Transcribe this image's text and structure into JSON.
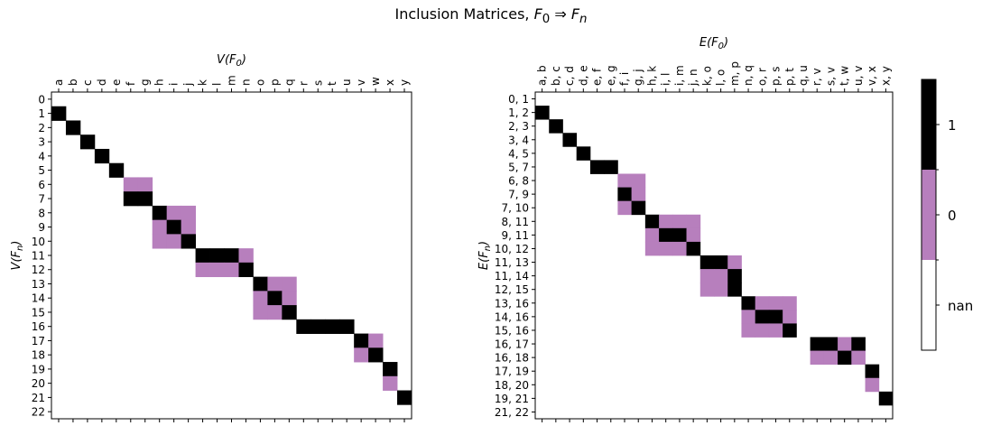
{
  "title": "Inclusion Matrices, F₀ ⇒ Fₙ",
  "colors": {
    "one": "#000000",
    "zero": "#b77fbd",
    "nan": "#ffffff"
  },
  "colorbar": {
    "ticks": [
      "1",
      "0",
      "nan"
    ]
  },
  "chart_data": [
    {
      "type": "heatmap",
      "title": "",
      "xlabel": "V(F₀)",
      "ylabel": "V(Fₙ)",
      "xlabel_top": true,
      "x_categories": [
        "a",
        "b",
        "c",
        "d",
        "e",
        "f",
        "g",
        "h",
        "i",
        "j",
        "k",
        "l",
        "m",
        "n",
        "o",
        "p",
        "q",
        "r",
        "s",
        "t",
        "u",
        "v",
        "w",
        "x",
        "y"
      ],
      "y_categories": [
        "0",
        "1",
        "2",
        "3",
        "4",
        "5",
        "6",
        "7",
        "8",
        "9",
        "10",
        "11",
        "12",
        "13",
        "14",
        "15",
        "16",
        "17",
        "18",
        "19",
        "20",
        "21",
        "22"
      ],
      "rows": [
        "nnnnnnnnnnnnnnnnnnnnnnnnn",
        "1nnnnnnnnnnnnnnnnnnnnnnnn",
        "n1nnnnnnnnnnnnnnnnnnnnnnn",
        "nn1nnnnnnnnnnnnnnnnnnnnnn",
        "nnn1nnnnnnnnnnnnnnnnnnnnn",
        "nnnn1nnnnnnnnnnnnnnnnnnnn",
        "nnnnn00nnnnnnnnnnnnnnnnnn",
        "nnnnn11nnnnnnnnnnnnnnnnnn",
        "nnnnnnn100nnnnnnnnnnnnnnn",
        "nnnnnnn010nnnnnnnnnnnnnnn",
        "nnnnnnn001nnnnnnnnnnnnnnn",
        "nnnnnnnnnn1110nnnnnnnnnnn",
        "nnnnnnnnnn0001nnnnnnnnnnn",
        "nnnnnnnnnnnnnn100nnnnnnnn",
        "nnnnnnnnnnnnnn010nnnnnnnn",
        "nnnnnnnnnnnnnn001nnnnnnnn",
        "nnnnnnnnnnnnnnnnn1111nnnn",
        "nnnnnnnnnnnnnnnnnnnnn10nn",
        "nnnnnnnnnnnnnnnnnnnnn01nn",
        "nnnnnnnnnnnnnnnnnnnnnnn1n",
        "nnnnnnnnnnnnnnnnnnnnnnn0n",
        "nnnnnnnnnnnnnnnnnnnnnnnn1",
        "nnnnnnnnnnnnnnnnnnnnnnnnn"
      ]
    },
    {
      "type": "heatmap",
      "title": "",
      "xlabel": "E(F₀)",
      "ylabel": "E(Fₙ)",
      "xlabel_top": true,
      "x_categories": [
        "a, b",
        "b, c",
        "c, d",
        "d, e",
        "e, f",
        "e, g",
        "f, i",
        "g, j",
        "h, k",
        "i, l",
        "i, m",
        "j, n",
        "k, o",
        "l, o",
        "m, p",
        "n, q",
        "o, r",
        "p, s",
        "p, t",
        "q, u",
        "r, v",
        "s, v",
        "t, w",
        "u, v",
        "v, x",
        "x, y"
      ],
      "y_categories": [
        "0, 1",
        "1, 2",
        "2, 3",
        "3, 4",
        "4, 5",
        "5, 7",
        "6, 8",
        "7, 9",
        "7, 10",
        "8, 11",
        "9, 11",
        "10, 12",
        "11, 13",
        "11, 14",
        "12, 15",
        "13, 16",
        "14, 16",
        "15, 16",
        "16, 17",
        "16, 18",
        "17, 19",
        "18, 20",
        "19, 21",
        "21, 22"
      ],
      "rows": [
        "nnnnnnnnnnnnnnnnnnnnnnnnnn",
        "1nnnnnnnnnnnnnnnnnnnnnnnnn",
        "n1nnnnnnnnnnnnnnnnnnnnnnnn",
        "nn1nnnnnnnnnnnnnnnnnnnnnnn",
        "nnn1nnnnnnnnnnnnnnnnnnnnnn",
        "nnnn11nnnnnnnnnnnnnnnnnnnn",
        "nnnnnn00nnnnnnnnnnnnnnnnnn",
        "nnnnnn10nnnnnnnnnnnnnnnnnn",
        "nnnnnn01nnnnnnnnnnnnnnnnnn",
        "nnnnnnnn1000nnnnnnnnnnnnnn",
        "nnnnnnnn0110nnnnnnnnnnnnnn",
        "nnnnnnnn0001nnnnnnnnnnnnnn",
        "nnnnnnnnnnnn110nnnnnnnnnnn",
        "nnnnnnnnnnnn001nnnnnnnnnnn",
        "nnnnnnnnnnnn001nnnnnnnnnnn",
        "nnnnnnnnnnnnnnn1000nnnnnnn",
        "nnnnnnnnnnnnnnn0110nnnnnnn",
        "nnnnnnnnnnnnnnn0001nnnnnnn",
        "nnnnnnnnnnnnnnnnnnnn1101nn",
        "nnnnnnnnnnnnnnnnnnnn0010nn",
        "nnnnnnnnnnnnnnnnnnnnnnnn1n",
        "nnnnnnnnnnnnnnnnnnnnnnnn0n",
        "nnnnnnnnnnnnnnnnnnnnnnnnn1",
        "nnnnnnnnnnnnnnnnnnnnnnnnnn"
      ]
    }
  ]
}
